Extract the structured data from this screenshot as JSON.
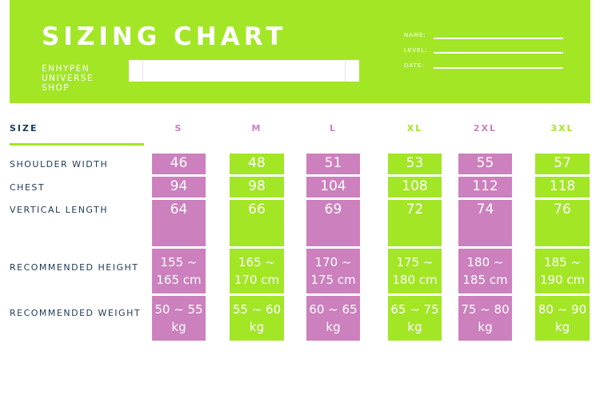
{
  "header": {
    "title": "SIZING CHART",
    "shop_lines": [
      "ENHYPEN",
      "UNIVERSE",
      "SHOP"
    ],
    "fields": [
      "NAME:",
      "LEVEL:",
      "DATE:"
    ]
  },
  "colors": {
    "green": "#a2e626",
    "pink": "#cc80bd",
    "navy": "#1e3a56"
  },
  "table": {
    "size_label": "SIZE",
    "sizes": [
      "S",
      "M",
      "L",
      "XL",
      "2XL",
      "3XL"
    ],
    "rows": [
      "SHOULDER WIDTH",
      "CHEST",
      "VERTICAL LENGTH",
      "RECOMMENDED HEIGHT",
      "RECOMMENDED WEIGHT"
    ],
    "shoulder": [
      "46",
      "48",
      "51",
      "53",
      "55",
      "57"
    ],
    "chest": [
      "94",
      "98",
      "104",
      "108",
      "112",
      "118"
    ],
    "length": [
      "64",
      "66",
      "69",
      "72",
      "74",
      "76"
    ],
    "height": [
      [
        "155 ~",
        "165 cm"
      ],
      [
        "165 ~",
        "170 cm"
      ],
      [
        "170 ~",
        "175 cm"
      ],
      [
        "175 ~",
        "180 cm"
      ],
      [
        "180 ~",
        "185 cm"
      ],
      [
        "185 ~",
        "190 cm"
      ]
    ],
    "weight": [
      [
        "50 ~ 55",
        "kg"
      ],
      [
        "55 ~ 60",
        "kg"
      ],
      [
        "60 ~ 65",
        "kg"
      ],
      [
        "65 ~ 75",
        "kg"
      ],
      [
        "75 ~ 80",
        "kg"
      ],
      [
        "80 ~ 90",
        "kg"
      ]
    ]
  }
}
